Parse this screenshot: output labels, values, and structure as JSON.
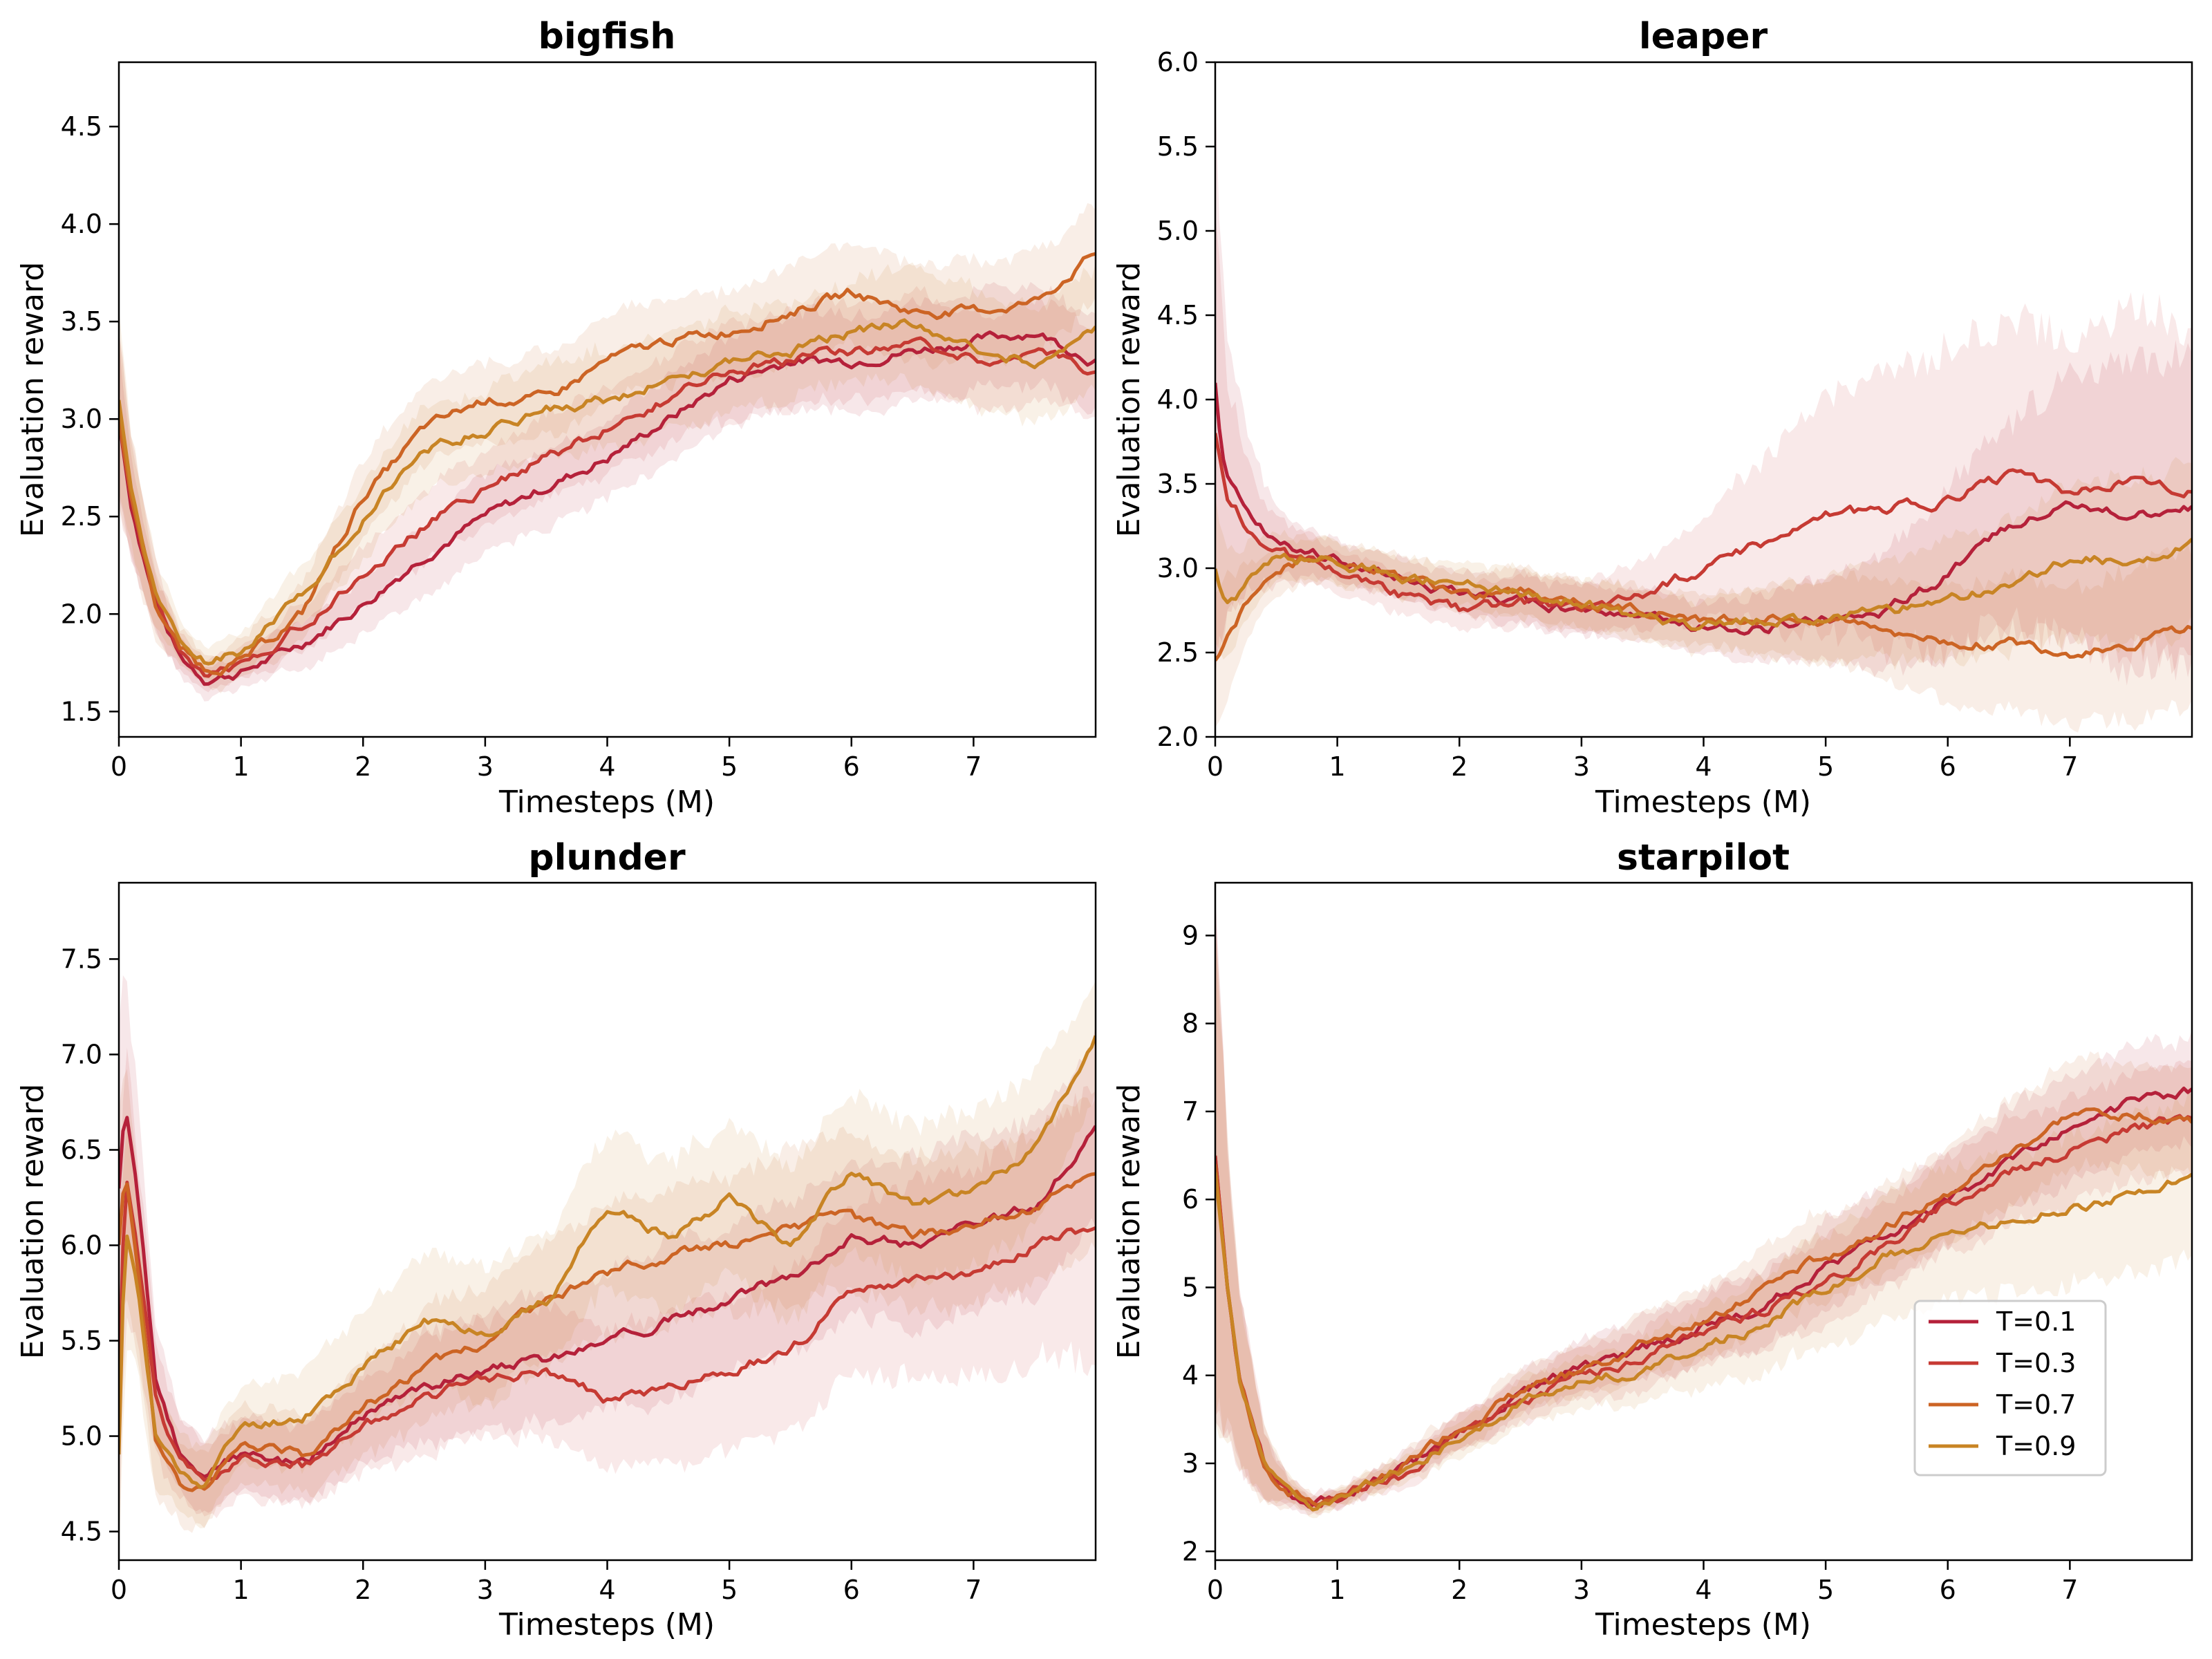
{
  "series_colors": [
    "#b5213a",
    "#c63a33",
    "#cc6424",
    "#c88424"
  ],
  "legend": {
    "entries": [
      "T=0.1",
      "T=0.3",
      "T=0.7",
      "T=0.9"
    ],
    "placement": "lower-right (starpilot panel)"
  },
  "chart_data": [
    {
      "type": "line",
      "title": "bigfish",
      "xlabel": "Timesteps (M)",
      "ylabel": "Evaluation reward",
      "xlim": [
        0,
        8
      ],
      "ylim": [
        1.37,
        4.83
      ],
      "xticks": [
        0,
        1,
        2,
        3,
        4,
        5,
        6,
        7
      ],
      "yticks": [
        1.5,
        2.0,
        2.5,
        3.0,
        3.5,
        4.0,
        4.5
      ],
      "x": [
        0,
        0.1,
        0.3,
        0.5,
        0.7,
        1,
        1.5,
        2,
        2.5,
        3,
        3.5,
        4,
        4.5,
        5,
        5.5,
        6,
        6.5,
        7,
        7.5,
        8
      ],
      "series": [
        {
          "name": "T=0.1",
          "values": [
            3.0,
            2.55,
            2.05,
            1.78,
            1.67,
            1.7,
            1.85,
            2.05,
            2.3,
            2.5,
            2.65,
            2.8,
            3.0,
            3.2,
            3.3,
            3.3,
            3.35,
            3.4,
            3.45,
            3.3
          ],
          "band": [
            0.4,
            0.25,
            0.15,
            0.1,
            0.08,
            0.08,
            0.12,
            0.15,
            0.18,
            0.2,
            0.2,
            0.2,
            0.22,
            0.22,
            0.25,
            0.25,
            0.25,
            0.25,
            0.25,
            0.25
          ]
        },
        {
          "name": "T=0.3",
          "values": [
            3.0,
            2.6,
            2.1,
            1.8,
            1.7,
            1.73,
            1.95,
            2.2,
            2.45,
            2.65,
            2.8,
            2.95,
            3.1,
            3.25,
            3.3,
            3.35,
            3.4,
            3.3,
            3.35,
            3.25
          ],
          "band": [
            0.45,
            0.3,
            0.18,
            0.1,
            0.08,
            0.08,
            0.12,
            0.15,
            0.18,
            0.2,
            0.22,
            0.22,
            0.22,
            0.25,
            0.25,
            0.25,
            0.25,
            0.25,
            0.25,
            0.25
          ]
        },
        {
          "name": "T=0.7",
          "values": [
            3.0,
            2.6,
            2.05,
            1.82,
            1.72,
            1.75,
            2.0,
            2.6,
            2.95,
            3.1,
            3.1,
            3.3,
            3.4,
            3.45,
            3.55,
            3.65,
            3.55,
            3.55,
            3.6,
            3.85
          ],
          "band": [
            0.45,
            0.3,
            0.18,
            0.1,
            0.08,
            0.1,
            0.15,
            0.2,
            0.2,
            0.2,
            0.22,
            0.22,
            0.22,
            0.22,
            0.25,
            0.25,
            0.25,
            0.25,
            0.25,
            0.25
          ]
        },
        {
          "name": "T=0.9",
          "values": [
            3.1,
            2.65,
            2.1,
            1.85,
            1.75,
            1.8,
            2.1,
            2.5,
            2.85,
            2.95,
            3.05,
            3.1,
            3.2,
            3.3,
            3.35,
            3.45,
            3.5,
            3.35,
            3.3,
            3.45
          ],
          "band": [
            0.5,
            0.3,
            0.18,
            0.1,
            0.08,
            0.1,
            0.15,
            0.2,
            0.22,
            0.22,
            0.25,
            0.25,
            0.25,
            0.25,
            0.25,
            0.25,
            0.3,
            0.3,
            0.3,
            0.3
          ]
        }
      ]
    },
    {
      "type": "line",
      "title": "leaper",
      "xlabel": "Timesteps (M)",
      "ylabel": "Evaluation reward",
      "xlim": [
        0,
        8
      ],
      "ylim": [
        2.0,
        6.0
      ],
      "xticks": [
        0,
        1,
        2,
        3,
        4,
        5,
        6,
        7
      ],
      "yticks": [
        2.0,
        2.5,
        3.0,
        3.5,
        4.0,
        4.5,
        5.0,
        5.5,
        6.0
      ],
      "x": [
        0,
        0.05,
        0.1,
        0.3,
        0.5,
        0.7,
        1,
        1.5,
        2,
        2.5,
        3,
        3.5,
        4,
        4.5,
        5,
        5.5,
        6,
        6.5,
        7,
        7.5,
        8
      ],
      "series": [
        {
          "name": "T=0.1",
          "values": [
            4.1,
            3.7,
            3.55,
            3.3,
            3.15,
            3.1,
            3.05,
            2.95,
            2.85,
            2.8,
            2.75,
            2.7,
            2.65,
            2.65,
            2.7,
            2.75,
            2.95,
            3.25,
            3.4,
            3.3,
            3.35
          ],
          "band": [
            1.7,
            1.2,
            0.8,
            0.4,
            0.2,
            0.15,
            0.12,
            0.12,
            0.12,
            0.15,
            0.15,
            0.15,
            0.15,
            0.2,
            0.25,
            0.35,
            0.5,
            0.6,
            0.8,
            0.9,
            0.9
          ]
        },
        {
          "name": "T=0.3",
          "values": [
            3.8,
            3.6,
            3.4,
            3.2,
            3.1,
            3.05,
            3.0,
            2.85,
            2.75,
            2.8,
            2.75,
            2.85,
            3.0,
            3.15,
            3.3,
            3.35,
            3.4,
            3.55,
            3.45,
            3.5,
            3.45
          ],
          "band": [
            1.3,
            1.0,
            0.7,
            0.35,
            0.2,
            0.15,
            0.12,
            0.12,
            0.12,
            0.15,
            0.15,
            0.2,
            0.3,
            0.5,
            0.7,
            0.8,
            0.9,
            0.9,
            0.9,
            1.0,
            1.0
          ]
        },
        {
          "name": "T=0.7",
          "values": [
            2.45,
            2.5,
            2.6,
            2.85,
            3.0,
            3.05,
            3.05,
            2.95,
            2.85,
            2.85,
            2.8,
            2.75,
            2.7,
            2.7,
            2.7,
            2.65,
            2.55,
            2.55,
            2.5,
            2.55,
            2.65
          ],
          "band": [
            0.4,
            0.4,
            0.35,
            0.2,
            0.15,
            0.15,
            0.12,
            0.12,
            0.12,
            0.15,
            0.15,
            0.15,
            0.15,
            0.2,
            0.25,
            0.3,
            0.35,
            0.4,
            0.4,
            0.45,
            0.45
          ]
        },
        {
          "name": "T=0.9",
          "values": [
            3.0,
            2.85,
            2.8,
            2.95,
            3.05,
            3.05,
            3.05,
            2.95,
            2.9,
            2.85,
            2.8,
            2.7,
            2.65,
            2.7,
            2.7,
            2.75,
            2.8,
            2.9,
            3.05,
            3.05,
            3.15
          ],
          "band": [
            0.45,
            0.4,
            0.3,
            0.2,
            0.15,
            0.12,
            0.12,
            0.12,
            0.12,
            0.15,
            0.15,
            0.15,
            0.15,
            0.2,
            0.25,
            0.3,
            0.35,
            0.4,
            0.45,
            0.5,
            0.5
          ]
        }
      ]
    },
    {
      "type": "line",
      "title": "plunder",
      "xlabel": "Timesteps (M)",
      "ylabel": "Evaluation reward",
      "xlim": [
        0,
        8
      ],
      "ylim": [
        4.35,
        7.9
      ],
      "xticks": [
        0,
        1,
        2,
        3,
        4,
        5,
        6,
        7
      ],
      "yticks": [
        4.5,
        5.0,
        5.5,
        6.0,
        6.5,
        7.0,
        7.5
      ],
      "x": [
        0,
        0.05,
        0.15,
        0.3,
        0.5,
        0.7,
        1,
        1.5,
        2,
        2.5,
        3,
        3.5,
        4,
        4.5,
        5,
        5.5,
        6,
        6.5,
        7,
        7.5,
        8
      ],
      "series": [
        {
          "name": "T=0.1",
          "values": [
            6.3,
            6.75,
            6.3,
            5.3,
            4.9,
            4.8,
            4.9,
            4.85,
            5.1,
            5.25,
            5.35,
            5.4,
            5.5,
            5.6,
            5.7,
            5.85,
            6.05,
            6.0,
            6.1,
            6.2,
            6.6
          ],
          "band": [
            0.8,
            0.7,
            0.5,
            0.3,
            0.2,
            0.2,
            0.2,
            0.2,
            0.25,
            0.3,
            0.3,
            0.35,
            0.35,
            0.4,
            0.4,
            0.4,
            0.4,
            0.45,
            0.45,
            0.45,
            0.5
          ]
        },
        {
          "name": "T=0.3",
          "values": [
            5.2,
            6.4,
            6.0,
            5.2,
            4.85,
            4.75,
            4.9,
            4.85,
            5.05,
            5.2,
            5.3,
            5.35,
            5.2,
            5.25,
            5.35,
            5.45,
            5.75,
            5.8,
            5.85,
            6.0,
            6.1
          ],
          "band": [
            0.8,
            0.7,
            0.5,
            0.3,
            0.2,
            0.2,
            0.2,
            0.2,
            0.25,
            0.3,
            0.3,
            0.35,
            0.35,
            0.4,
            0.4,
            0.45,
            0.45,
            0.5,
            0.55,
            0.6,
            0.7
          ]
        },
        {
          "name": "T=0.7",
          "values": [
            6.0,
            6.4,
            5.9,
            5.0,
            4.75,
            4.7,
            4.95,
            4.9,
            5.15,
            5.35,
            5.5,
            5.7,
            5.85,
            5.95,
            6.0,
            6.1,
            6.15,
            6.05,
            6.1,
            6.2,
            6.4
          ],
          "band": [
            0.7,
            0.6,
            0.45,
            0.3,
            0.2,
            0.2,
            0.2,
            0.2,
            0.25,
            0.3,
            0.3,
            0.3,
            0.35,
            0.35,
            0.35,
            0.4,
            0.4,
            0.4,
            0.4,
            0.4,
            0.4
          ]
        },
        {
          "name": "T=0.9",
          "values": [
            4.9,
            6.1,
            5.8,
            5.0,
            4.8,
            4.75,
            5.05,
            5.1,
            5.35,
            5.6,
            5.55,
            5.7,
            6.2,
            6.05,
            6.25,
            6.0,
            6.4,
            6.2,
            6.3,
            6.5,
            7.1
          ],
          "band": [
            0.6,
            0.6,
            0.45,
            0.3,
            0.2,
            0.2,
            0.2,
            0.25,
            0.3,
            0.35,
            0.35,
            0.35,
            0.4,
            0.4,
            0.4,
            0.4,
            0.4,
            0.4,
            0.4,
            0.4,
            0.3
          ]
        }
      ]
    },
    {
      "type": "line",
      "title": "starpilot",
      "xlabel": "Timesteps (M)",
      "ylabel": "Evaluation reward",
      "xlim": [
        0,
        8
      ],
      "ylim": [
        1.9,
        9.6
      ],
      "xticks": [
        0,
        1,
        2,
        3,
        4,
        5,
        6,
        7
      ],
      "yticks": [
        2,
        3,
        4,
        5,
        6,
        7,
        8,
        9
      ],
      "x": [
        0,
        0.1,
        0.2,
        0.4,
        0.6,
        0.8,
        1,
        1.5,
        2,
        2.5,
        3,
        3.5,
        4,
        4.5,
        5,
        5.5,
        6,
        6.5,
        7,
        7.5,
        8
      ],
      "series": [
        {
          "name": "T=0.1",
          "values": [
            6.5,
            5.0,
            4.0,
            3.0,
            2.65,
            2.55,
            2.6,
            2.9,
            3.35,
            3.8,
            4.1,
            4.3,
            4.55,
            4.8,
            5.2,
            5.6,
            6.0,
            6.4,
            6.8,
            7.1,
            7.25
          ],
          "band": [
            2.8,
            1.6,
            1.0,
            0.4,
            0.15,
            0.1,
            0.1,
            0.15,
            0.2,
            0.25,
            0.3,
            0.35,
            0.4,
            0.45,
            0.5,
            0.5,
            0.55,
            0.6,
            0.6,
            0.6,
            0.6
          ]
        },
        {
          "name": "T=0.3",
          "values": [
            6.5,
            5.0,
            4.0,
            3.0,
            2.65,
            2.55,
            2.62,
            2.85,
            3.3,
            3.7,
            4.0,
            4.2,
            4.5,
            4.75,
            5.05,
            5.5,
            5.95,
            6.3,
            6.55,
            6.8,
            6.9
          ],
          "band": [
            2.8,
            1.6,
            1.0,
            0.4,
            0.15,
            0.1,
            0.1,
            0.15,
            0.2,
            0.25,
            0.3,
            0.35,
            0.4,
            0.45,
            0.5,
            0.5,
            0.55,
            0.6,
            0.6,
            0.6,
            0.6
          ]
        },
        {
          "name": "T=0.7",
          "values": [
            6.4,
            5.0,
            4.0,
            3.0,
            2.65,
            2.55,
            2.6,
            2.95,
            3.4,
            3.8,
            4.05,
            4.35,
            4.65,
            5.0,
            5.35,
            5.7,
            6.1,
            6.5,
            6.95,
            7.0,
            6.9
          ],
          "band": [
            2.8,
            1.6,
            1.0,
            0.4,
            0.15,
            0.1,
            0.1,
            0.15,
            0.2,
            0.25,
            0.3,
            0.35,
            0.4,
            0.45,
            0.5,
            0.5,
            0.55,
            0.6,
            0.6,
            0.6,
            0.6
          ]
        },
        {
          "name": "T=0.9",
          "values": [
            6.3,
            5.0,
            4.0,
            3.0,
            2.65,
            2.55,
            2.6,
            2.9,
            3.3,
            3.7,
            3.95,
            4.05,
            4.3,
            4.6,
            5.0,
            5.35,
            5.6,
            5.75,
            5.9,
            6.05,
            6.25
          ],
          "band": [
            2.8,
            1.6,
            1.0,
            0.4,
            0.15,
            0.1,
            0.1,
            0.15,
            0.2,
            0.25,
            0.3,
            0.35,
            0.45,
            0.55,
            0.65,
            0.7,
            0.75,
            0.8,
            0.85,
            0.9,
            0.9
          ]
        }
      ]
    }
  ]
}
